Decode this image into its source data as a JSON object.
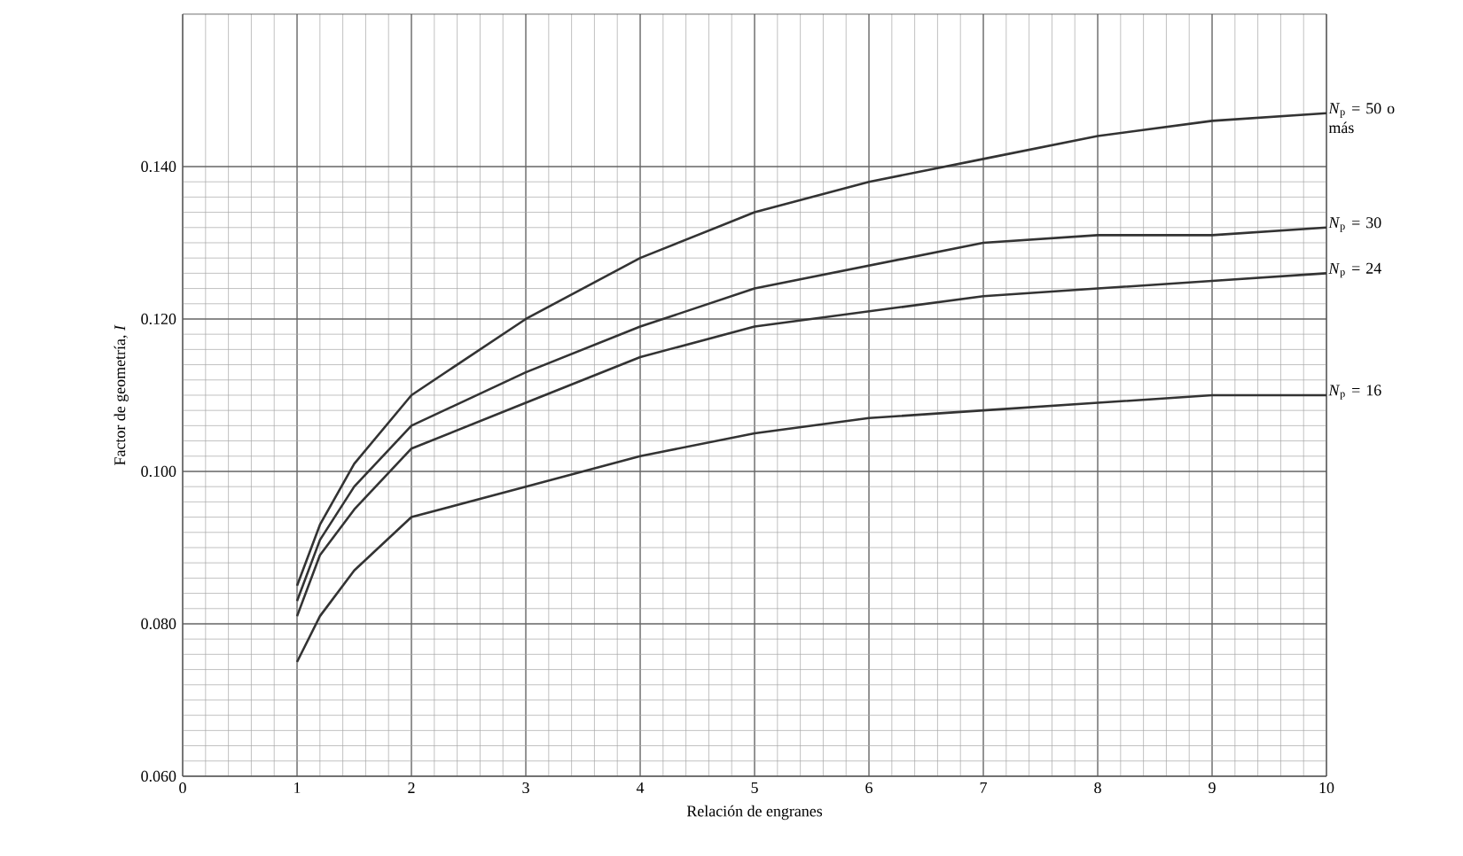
{
  "chart_data": {
    "type": "line",
    "xlabel": "Relación de engranes",
    "ylabel": "Factor de geometría, *I*",
    "x": [
      1,
      1.2,
      1.5,
      2,
      3,
      4,
      5,
      6,
      7,
      8,
      9,
      10
    ],
    "series": [
      {
        "name": "*N*$_{p}$ = 50 o más",
        "color": "#333333",
        "values": [
          0.085,
          0.093,
          0.101,
          0.11,
          0.12,
          0.128,
          0.134,
          0.138,
          0.141,
          0.144,
          0.146,
          0.147
        ]
      },
      {
        "name": "*N*$_{p}$ = 30",
        "color": "#333333",
        "values": [
          0.083,
          0.091,
          0.098,
          0.106,
          0.113,
          0.119,
          0.124,
          0.127,
          0.13,
          0.131,
          0.131,
          0.132
        ]
      },
      {
        "name": "*N*$_{p}$ = 24",
        "color": "#333333",
        "values": [
          0.081,
          0.089,
          0.095,
          0.103,
          0.109,
          0.115,
          0.119,
          0.121,
          0.123,
          0.124,
          0.125,
          0.126
        ]
      },
      {
        "name": "*N*$_{p}$ = 16",
        "color": "#333333",
        "values": [
          0.075,
          0.081,
          0.087,
          0.094,
          0.098,
          0.102,
          0.105,
          0.107,
          0.108,
          0.109,
          0.11,
          0.11
        ]
      }
    ],
    "xlim": [
      0,
      10
    ],
    "ylim": [
      0.06,
      0.16
    ],
    "xticks": [
      0,
      1,
      2,
      3,
      4,
      5,
      6,
      7,
      8,
      9,
      10
    ],
    "yticks": [
      {
        "value": 0.06,
        "label": "0.060"
      },
      {
        "value": 0.08,
        "label": "0.080"
      },
      {
        "value": 0.1,
        "label": "0.100"
      },
      {
        "value": 0.12,
        "label": "0.120"
      },
      {
        "value": 0.14,
        "label": "0.140"
      }
    ],
    "grid": true,
    "marker": "none",
    "line_style": "solid"
  }
}
